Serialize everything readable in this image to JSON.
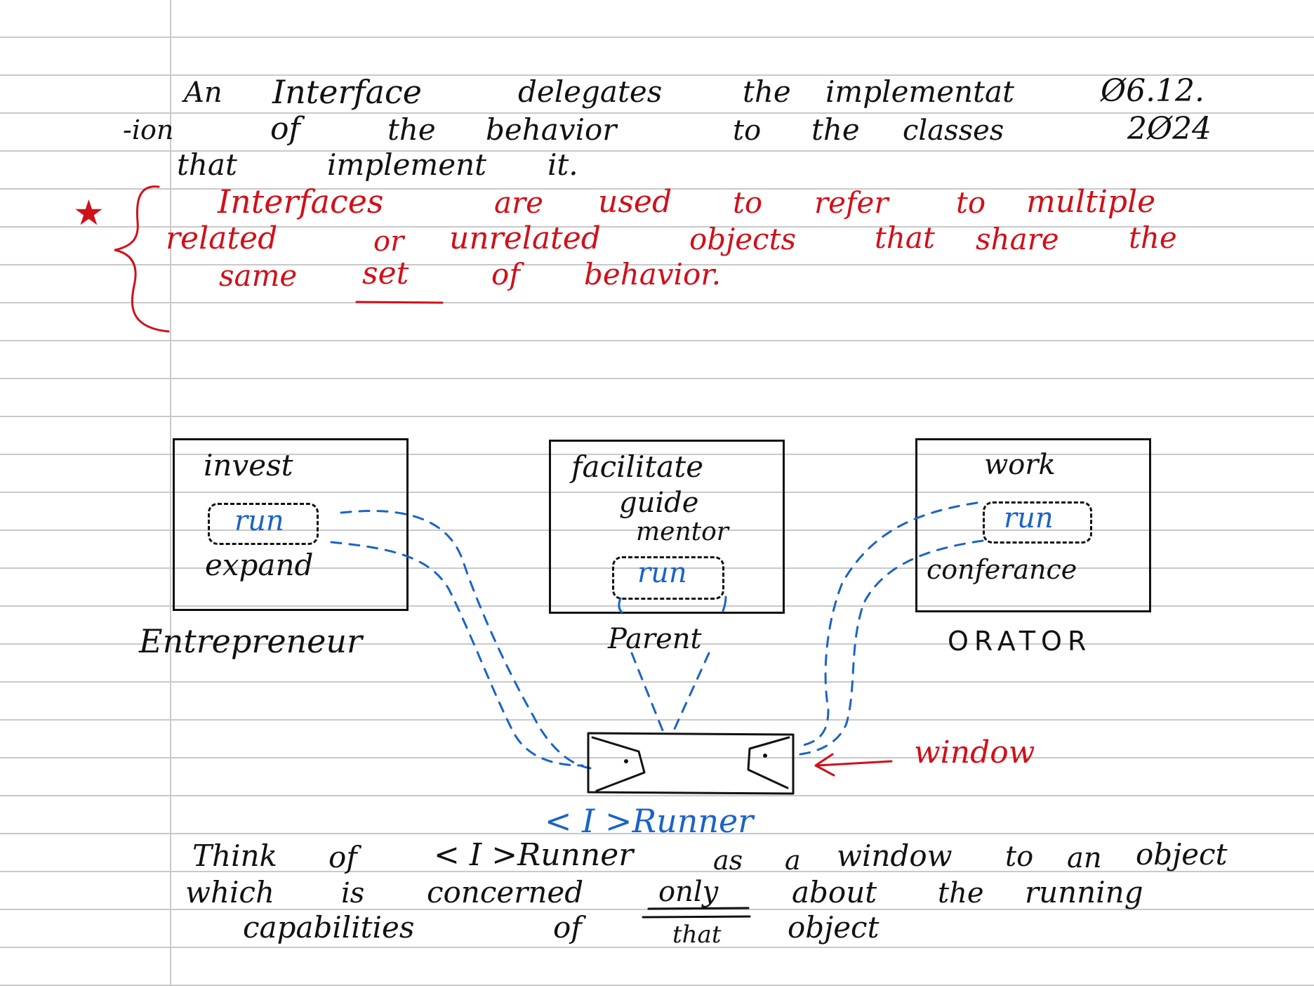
{
  "note": {
    "para1": {
      "line1_words": [
        "An",
        "Interface",
        "delegates",
        "the",
        "implementat"
      ],
      "date_top": "Ø6.12.",
      "line2_words": [
        "-ion",
        "of",
        "the",
        "behavior",
        "to",
        "the",
        "classes"
      ],
      "date_bottom": "2Ø24",
      "line3_words": [
        "that",
        "implement",
        "it."
      ]
    },
    "para2": {
      "star": "★",
      "line1_words": [
        "Interfaces",
        "are",
        "used",
        "to",
        "refer",
        "to",
        "multiple"
      ],
      "line2_words": [
        "related",
        "or",
        "unrelated",
        "objects",
        "that",
        "share",
        "the"
      ],
      "line3_words": [
        "same",
        "set",
        "of",
        "behavior."
      ],
      "underlined_word": "set"
    },
    "diagram": {
      "entrepreneur": {
        "label": "Entrepreneur",
        "items": [
          "invest",
          "run",
          "expand"
        ]
      },
      "parent": {
        "label": "Parent",
        "items": [
          "facilitate",
          "guide",
          "mentor",
          "run"
        ]
      },
      "orator": {
        "label": "ORATOR",
        "items": [
          "work",
          "run",
          "conferance"
        ]
      },
      "interface_label": "< I >Runner",
      "window_label": "window"
    },
    "para3": {
      "line1_words": [
        "Think",
        "of",
        "< I >Runner",
        "as",
        "a",
        "window",
        "to",
        "an",
        "object"
      ],
      "line2_words": [
        "which",
        "is",
        "concerned",
        "only",
        "about",
        "the",
        "running"
      ],
      "line3_words": [
        "capabilities",
        "of",
        "that",
        "object"
      ]
    },
    "colors": {
      "ink": "#111111",
      "red": "#d0101a",
      "blue": "#1a63c7",
      "rule": "#c9c9c9"
    }
  }
}
